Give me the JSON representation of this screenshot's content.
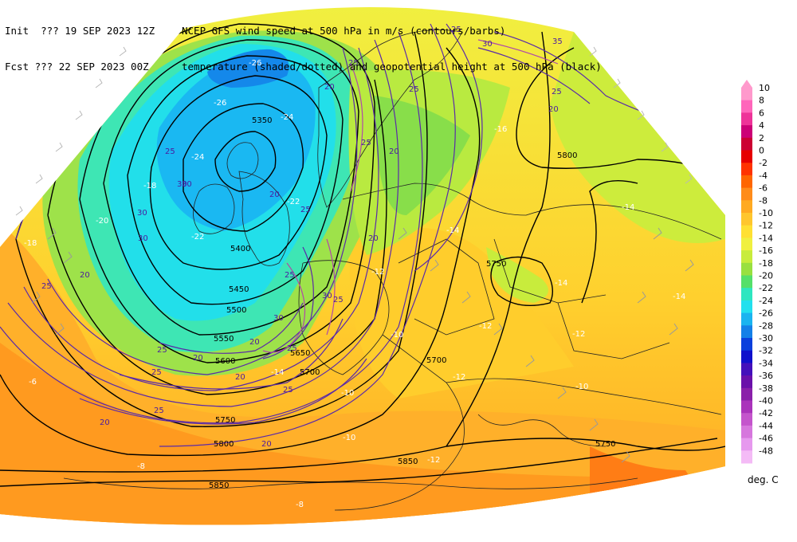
{
  "header": {
    "line1_left": "Init  ??? 19 SEP 2023 12Z",
    "line1_right": "NCEP GFS wind speed at 500 hPa in m/s (contours/barbs)",
    "line2_left": "Fcst ??? 22 SEP 2023 00Z",
    "line2_right": "temperature (shaded/dotted) and geopotential height at 500 hPa (black)"
  },
  "legend": {
    "unit": "deg. C",
    "entries": [
      {
        "label": "10",
        "color": "#ff99cc"
      },
      {
        "label": "8",
        "color": "#ff66bb"
      },
      {
        "label": "6",
        "color": "#ee3399"
      },
      {
        "label": "4",
        "color": "#cc0077"
      },
      {
        "label": "2",
        "color": "#cc0033"
      },
      {
        "label": "0",
        "color": "#e60000"
      },
      {
        "label": "-2",
        "color": "#ff3300"
      },
      {
        "label": "-4",
        "color": "#ff6600"
      },
      {
        "label": "-6",
        "color": "#ff8c1a"
      },
      {
        "label": "-8",
        "color": "#ffaa22"
      },
      {
        "label": "-10",
        "color": "#ffc62e"
      },
      {
        "label": "-12",
        "color": "#ffe033"
      },
      {
        "label": "-14",
        "color": "#f0f040"
      },
      {
        "label": "-16",
        "color": "#c8ec3c"
      },
      {
        "label": "-18",
        "color": "#99e040"
      },
      {
        "label": "-20",
        "color": "#55e06a"
      },
      {
        "label": "-22",
        "color": "#2ee6c0"
      },
      {
        "label": "-24",
        "color": "#22e0ee"
      },
      {
        "label": "-26",
        "color": "#1ab4f0"
      },
      {
        "label": "-28",
        "color": "#1480e8"
      },
      {
        "label": "-30",
        "color": "#0a40dd"
      },
      {
        "label": "-32",
        "color": "#1010cc"
      },
      {
        "label": "-34",
        "color": "#4410bb"
      },
      {
        "label": "-36",
        "color": "#6a10aa"
      },
      {
        "label": "-38",
        "color": "#8a20aa"
      },
      {
        "label": "-40",
        "color": "#aa33bb"
      },
      {
        "label": "-42",
        "color": "#c455cc"
      },
      {
        "label": "-44",
        "color": "#d677dd"
      },
      {
        "label": "-46",
        "color": "#e699ee"
      },
      {
        "label": "-48",
        "color": "#f4bbf6"
      }
    ]
  },
  "map": {
    "height_labels": [
      "5350",
      "5400",
      "5450",
      "5500",
      "5550",
      "5600",
      "5650",
      "5700",
      "5750",
      "5800",
      "5850",
      "5750",
      "5800",
      "5850",
      "5700",
      "5750"
    ],
    "wind_labels": [
      "25",
      "20",
      "25",
      "30",
      "35",
      "25",
      "30",
      "25",
      "20",
      "25",
      "20",
      "25",
      "30",
      "25",
      "20",
      "25",
      "20",
      "25",
      "30",
      "25",
      "20",
      "25",
      "20",
      "30",
      "25",
      "20",
      "25",
      "30",
      "20",
      "20",
      "25",
      "30",
      "25",
      "20"
    ],
    "temp_labels": [
      "-26",
      "-26",
      "-24",
      "-22",
      "-20",
      "-18",
      "-16",
      "-14",
      "-12",
      "-14",
      "-14",
      "-14",
      "-12",
      "-10",
      "-12",
      "-12",
      "-10",
      "-10",
      "-8",
      "-6",
      "-12",
      "-10",
      "-14",
      "-10",
      "-6",
      "-8",
      "-24",
      "-22",
      "-18"
    ]
  }
}
